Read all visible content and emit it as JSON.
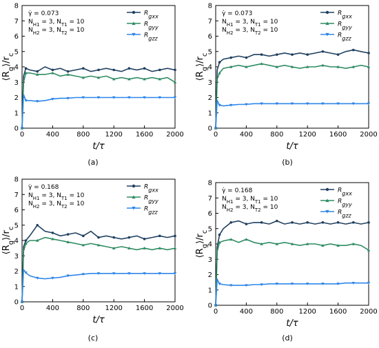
{
  "chart_data": [
    {
      "type": "line",
      "caption": "(a)",
      "annotation": [
        "γ̇ = 0.073",
        "N_H1 = 3, N_T1 = 10",
        "N_H2 = 3, N_T2 = 10"
      ],
      "xlabel": "t/τ",
      "ylabel": "⟨R_g⟩/r_c",
      "xlim": [
        0,
        2000
      ],
      "ylim": [
        0,
        8
      ],
      "xticks": [
        0,
        400,
        800,
        1200,
        1600,
        2000
      ],
      "yticks": [
        0,
        1,
        2,
        3,
        4,
        5,
        6,
        7,
        8
      ],
      "legend_position": "top-right",
      "x": [
        0,
        20,
        50,
        100,
        200,
        300,
        400,
        500,
        600,
        700,
        800,
        900,
        1000,
        1100,
        1200,
        1300,
        1400,
        1500,
        1600,
        1700,
        1800,
        1900,
        2000
      ],
      "series": [
        {
          "name": "R_gxx",
          "color": "#1f3f5f",
          "marker": "circle",
          "values": [
            0,
            3.4,
            3.9,
            3.8,
            3.7,
            4.0,
            3.8,
            3.9,
            3.7,
            3.8,
            3.9,
            3.7,
            3.8,
            3.9,
            3.8,
            3.7,
            3.9,
            3.8,
            3.9,
            3.7,
            3.8,
            3.9,
            3.8
          ]
        },
        {
          "name": "R_gyy",
          "color": "#2e8b62",
          "marker": "triangle",
          "values": [
            0,
            3.0,
            3.6,
            3.6,
            3.5,
            3.5,
            3.6,
            3.4,
            3.5,
            3.4,
            3.3,
            3.4,
            3.3,
            3.4,
            3.2,
            3.3,
            3.2,
            3.3,
            3.2,
            3.3,
            3.2,
            3.3,
            3.0
          ]
        },
        {
          "name": "R_gzz",
          "color": "#2e86e8",
          "marker": "triangle-down",
          "values": [
            0,
            2.2,
            1.8,
            1.8,
            1.75,
            1.8,
            1.9,
            1.95,
            1.95,
            2.0,
            2.0,
            2.0,
            2.0,
            2.0,
            2.0,
            2.0,
            2.0,
            2.0,
            2.0,
            2.0,
            2.0,
            2.0,
            2.0
          ]
        }
      ]
    },
    {
      "type": "line",
      "caption": "(b)",
      "annotation": [
        "γ̇ = 0.073",
        "N_H1 = 3, N_T1 = 10",
        "N_H2 = 3, N_T2 = 10"
      ],
      "xlabel": "t/τ",
      "ylabel": "⟨R_g⟩/r_c",
      "xlim": [
        0,
        2000
      ],
      "ylim": [
        0,
        8
      ],
      "xticks": [
        0,
        400,
        800,
        1200,
        1600,
        2000
      ],
      "yticks": [
        0,
        1,
        2,
        3,
        4,
        5,
        6,
        7,
        8
      ],
      "legend_position": "top-right",
      "x": [
        0,
        20,
        50,
        100,
        200,
        300,
        400,
        500,
        600,
        700,
        800,
        900,
        1000,
        1100,
        1200,
        1300,
        1400,
        1500,
        1600,
        1700,
        1800,
        1900,
        2000
      ],
      "series": [
        {
          "name": "R_gxx",
          "color": "#1f3f5f",
          "marker": "circle",
          "values": [
            0,
            3.8,
            4.3,
            4.5,
            4.6,
            4.7,
            4.6,
            4.8,
            4.8,
            4.7,
            4.8,
            4.9,
            4.8,
            4.9,
            4.8,
            4.9,
            5.0,
            4.9,
            4.8,
            5.0,
            5.1,
            5.0,
            4.9
          ]
        },
        {
          "name": "R_gyy",
          "color": "#2e8b62",
          "marker": "triangle",
          "values": [
            0,
            3.2,
            3.6,
            3.9,
            4.0,
            4.1,
            4.0,
            4.1,
            4.2,
            4.1,
            4.0,
            4.1,
            4.0,
            3.9,
            4.0,
            4.0,
            4.1,
            4.0,
            4.0,
            3.9,
            4.0,
            4.1,
            4.0
          ]
        },
        {
          "name": "R_gzz",
          "color": "#2e86e8",
          "marker": "triangle-down",
          "values": [
            0,
            1.8,
            1.5,
            1.45,
            1.5,
            1.55,
            1.55,
            1.6,
            1.6,
            1.6,
            1.6,
            1.6,
            1.6,
            1.6,
            1.6,
            1.6,
            1.6,
            1.6,
            1.6,
            1.6,
            1.6,
            1.6,
            1.6
          ]
        }
      ]
    },
    {
      "type": "line",
      "caption": "(c)",
      "annotation": [
        "γ̇ = 0.168",
        "N_H1 = 3, N_T1 = 10",
        "N_H2 = 3, N_T2 = 10"
      ],
      "xlabel": "t/τ",
      "ylabel": "⟨R_g⟩/r_c",
      "xlim": [
        0,
        2000
      ],
      "ylim": [
        0,
        8
      ],
      "xticks": [
        0,
        400,
        800,
        1200,
        1600,
        2000
      ],
      "yticks": [
        0,
        1,
        2,
        3,
        4,
        5,
        6,
        7,
        8
      ],
      "legend_position": "top-right",
      "x": [
        0,
        20,
        50,
        100,
        200,
        300,
        400,
        500,
        600,
        700,
        800,
        900,
        1000,
        1100,
        1200,
        1300,
        1400,
        1500,
        1600,
        1700,
        1800,
        1900,
        2000
      ],
      "series": [
        {
          "name": "R_gxx",
          "color": "#1f3f5f",
          "marker": "circle",
          "values": [
            0,
            3.6,
            4.0,
            4.3,
            5.0,
            4.6,
            4.5,
            4.3,
            4.4,
            4.5,
            4.3,
            4.6,
            4.2,
            4.3,
            4.2,
            4.1,
            4.2,
            4.3,
            4.1,
            4.2,
            4.3,
            4.2,
            4.3
          ]
        },
        {
          "name": "R_gyy",
          "color": "#2e8b62",
          "marker": "triangle",
          "values": [
            0,
            3.3,
            3.8,
            4.0,
            4.0,
            4.2,
            4.1,
            4.0,
            3.9,
            3.8,
            3.7,
            3.8,
            3.7,
            3.6,
            3.5,
            3.6,
            3.5,
            3.4,
            3.5,
            3.4,
            3.5,
            3.4,
            3.5
          ]
        },
        {
          "name": "R_gzz",
          "color": "#2e86e8",
          "marker": "triangle-down",
          "values": [
            0,
            2.1,
            1.9,
            1.7,
            1.55,
            1.5,
            1.55,
            1.6,
            1.7,
            1.75,
            1.8,
            1.85,
            1.85,
            1.85,
            1.85,
            1.85,
            1.85,
            1.85,
            1.85,
            1.85,
            1.85,
            1.85,
            1.85
          ]
        }
      ]
    },
    {
      "type": "line",
      "caption": "(d)",
      "annotation": [
        "γ̇ = 0.168",
        "N_H1 = 3, N_T1 = 10",
        "N_H2 = 3, N_T2 = 10"
      ],
      "xlabel": "t/τ",
      "ylabel": "⟨R_g⟩/r_c",
      "xlim": [
        0,
        2000
      ],
      "ylim": [
        0,
        8
      ],
      "xticks": [
        0,
        400,
        800,
        1200,
        1600,
        2000
      ],
      "yticks": [
        0,
        1,
        2,
        3,
        4,
        5,
        6,
        7,
        8
      ],
      "legend_position": "top-right",
      "x": [
        0,
        20,
        50,
        100,
        200,
        300,
        400,
        500,
        600,
        700,
        800,
        900,
        1000,
        1100,
        1200,
        1300,
        1400,
        1500,
        1600,
        1700,
        1800,
        1900,
        2000
      ],
      "series": [
        {
          "name": "R_gxx",
          "color": "#1f3f5f",
          "marker": "circle",
          "values": [
            0,
            3.8,
            4.6,
            5.0,
            5.4,
            5.5,
            5.3,
            5.4,
            5.4,
            5.3,
            5.5,
            5.3,
            5.4,
            5.3,
            5.4,
            5.3,
            5.4,
            5.3,
            5.4,
            5.3,
            5.4,
            5.3,
            5.4
          ]
        },
        {
          "name": "R_gyy",
          "color": "#2e8b62",
          "marker": "triangle",
          "values": [
            0,
            3.5,
            4.1,
            4.2,
            4.3,
            4.1,
            4.3,
            4.1,
            4.0,
            4.1,
            4.0,
            4.1,
            4.0,
            3.9,
            4.0,
            4.0,
            3.9,
            4.0,
            3.9,
            3.9,
            4.0,
            3.9,
            3.6
          ]
        },
        {
          "name": "R_gzz",
          "color": "#2e86e8",
          "marker": "triangle-down",
          "values": [
            0,
            1.7,
            1.4,
            1.35,
            1.3,
            1.3,
            1.3,
            1.35,
            1.35,
            1.4,
            1.4,
            1.4,
            1.4,
            1.4,
            1.4,
            1.4,
            1.4,
            1.4,
            1.4,
            1.45,
            1.45,
            1.45,
            1.45
          ]
        }
      ]
    }
  ]
}
